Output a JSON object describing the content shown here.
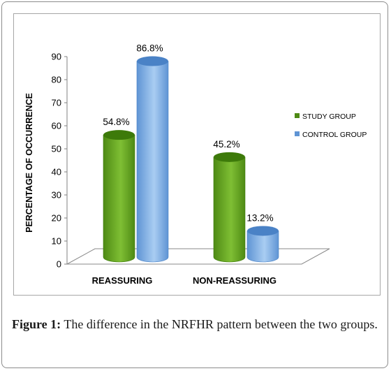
{
  "chart_data": {
    "type": "bar",
    "categories": [
      "REASSURING",
      "NON-REASSURING"
    ],
    "series": [
      {
        "name": "STUDY GROUP",
        "values": [
          54.8,
          45.2
        ],
        "labels": [
          "54.8%",
          "45.2%"
        ],
        "color": "#4e8a14",
        "highlight": "#7fbf34",
        "top_color": "#3d7a0a"
      },
      {
        "name": "CONTROL GROUP",
        "values": [
          86.8,
          13.2
        ],
        "labels": [
          "86.8%",
          "13.2%"
        ],
        "color": "#5f94d4",
        "highlight": "#a9cdf2",
        "top_color": "#4a82c6"
      }
    ],
    "ylabel": "PERCENTAGE OF OCCURRENCE",
    "ylim": [
      0,
      90
    ],
    "yticks": [
      "0",
      "10",
      "20",
      "30",
      "40",
      "50",
      "60",
      "70",
      "80",
      "90"
    ],
    "legend_position": "right"
  },
  "caption": {
    "label": "Figure 1:",
    "text": " The difference in the NRFHR pattern between the two groups."
  }
}
